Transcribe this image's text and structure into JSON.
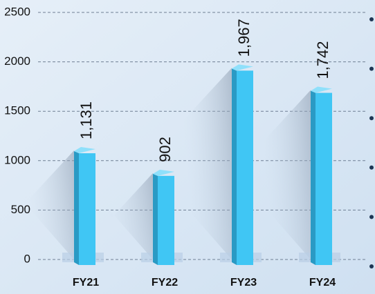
{
  "chart_data": {
    "type": "bar",
    "categories": [
      "FY21",
      "FY22",
      "FY23",
      "FY24"
    ],
    "values": [
      1131,
      902,
      1967,
      1742
    ],
    "value_labels": [
      "1,131",
      "902",
      "1,967",
      "1,742"
    ],
    "color": "#40c6f4",
    "ylim": [
      0,
      2500
    ],
    "yticks": [
      0,
      500,
      1000,
      1500,
      2000,
      2500
    ],
    "grid": true
  }
}
